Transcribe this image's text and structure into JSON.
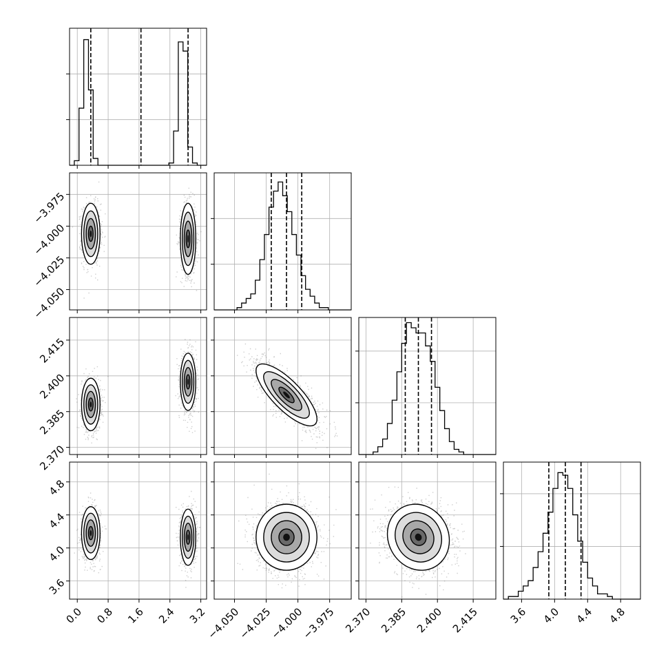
{
  "colors": {
    "ink": "#000000",
    "grid": "#b0b0b0",
    "background": "#ffffff"
  },
  "chart_data": {
    "type": "corner",
    "grid": true,
    "parameters": [
      {
        "range": [
          -0.2,
          3.35
        ],
        "ticks": [
          0.0,
          0.8,
          1.6,
          2.4,
          3.2
        ],
        "tick_labels": [
          "0.0",
          "0.8",
          "1.6",
          "2.4",
          "3.2"
        ],
        "quantiles": [
          0.35,
          1.65,
          2.87
        ]
      },
      {
        "range": [
          -4.066,
          -3.958
        ],
        "ticks": [
          -4.05,
          -4.025,
          -4.0,
          -3.975
        ],
        "tick_labels": [
          "−4.050",
          "−4.025",
          "−4.000",
          "−3.975"
        ],
        "quantiles": [
          -4.021,
          -4.009,
          -3.997
        ]
      },
      {
        "range": [
          2.367,
          2.4245
        ],
        "ticks": [
          2.37,
          2.385,
          2.4,
          2.415
        ],
        "tick_labels": [
          "2.370",
          "2.385",
          "2.400",
          "2.415"
        ],
        "quantiles": [
          2.3865,
          2.392,
          2.3975
        ]
      },
      {
        "range": [
          3.38,
          5.04
        ],
        "ticks": [
          3.6,
          4.0,
          4.4,
          4.8
        ],
        "tick_labels": [
          "3.6",
          "4.0",
          "4.4",
          "4.8"
        ],
        "quantiles": [
          3.93,
          4.13,
          4.32
        ]
      }
    ],
    "histograms": [
      {
        "param": 0,
        "edges": [
          -0.2,
          -0.077,
          0.045,
          0.168,
          0.29,
          0.412,
          0.535,
          0.658,
          0.78,
          0.902,
          1.025,
          1.148,
          1.27,
          1.392,
          1.515,
          1.638,
          1.76,
          1.882,
          2.005,
          2.128,
          2.25,
          2.372,
          2.495,
          2.617,
          2.74,
          2.862,
          2.985,
          3.108,
          3.23,
          3.35
        ],
        "counts": [
          0,
          2,
          25,
          55,
          33,
          3,
          0,
          0,
          0,
          0,
          0,
          0,
          0,
          0,
          0,
          0,
          0,
          0,
          0,
          0,
          0,
          1,
          15,
          54,
          50,
          8,
          1,
          0,
          0
        ],
        "ylim": [
          0,
          60
        ],
        "gridlines": [
          20,
          40
        ]
      },
      {
        "param": 1,
        "edges": [
          -4.066,
          -4.0624,
          -4.0588,
          -4.0552,
          -4.0516,
          -4.048,
          -4.0444,
          -4.0408,
          -4.0372,
          -4.0336,
          -4.03,
          -4.0264,
          -4.0228,
          -4.0192,
          -4.0156,
          -4.012,
          -4.0084,
          -4.0048,
          -4.0012,
          -3.9976,
          -3.994,
          -3.9904,
          -3.9868,
          -3.9832,
          -3.9796,
          -3.976,
          -3.9724,
          -3.9688,
          -3.9652,
          -3.9616,
          -3.958
        ],
        "counts": [
          0,
          0,
          0,
          0,
          0,
          1,
          3,
          5,
          7,
          13,
          22,
          33,
          45,
          52,
          56,
          50,
          43,
          33,
          24,
          15,
          9,
          6,
          3,
          1,
          1,
          0,
          0,
          0,
          0,
          0
        ],
        "ylim": [
          0,
          60
        ],
        "gridlines": [
          20,
          40
        ]
      },
      {
        "param": 2,
        "edges": [
          2.367,
          2.369,
          2.371,
          2.373,
          2.375,
          2.377,
          2.379,
          2.381,
          2.383,
          2.385,
          2.387,
          2.389,
          2.391,
          2.393,
          2.395,
          2.397,
          2.399,
          2.401,
          2.403,
          2.405,
          2.407,
          2.409,
          2.411,
          2.413,
          2.415,
          2.417,
          2.419,
          2.421,
          2.423,
          2.4245
        ],
        "counts": [
          0,
          0,
          0,
          1,
          3,
          6,
          12,
          21,
          32,
          43,
          51,
          49,
          47,
          47,
          42,
          36,
          26,
          17,
          10,
          5,
          2,
          1,
          0,
          0,
          0,
          0,
          0,
          0,
          0
        ],
        "ylim": [
          0,
          53
        ],
        "gridlines": [
          20,
          40
        ]
      },
      {
        "param": 3,
        "edges": [
          3.38,
          3.44,
          3.5,
          3.56,
          3.62,
          3.68,
          3.74,
          3.8,
          3.86,
          3.92,
          3.98,
          4.04,
          4.1,
          4.16,
          4.22,
          4.28,
          4.34,
          4.4,
          4.46,
          4.52,
          4.58,
          4.64,
          4.7,
          4.76,
          4.82,
          4.88,
          4.94,
          5.0,
          5.04
        ],
        "counts": [
          0,
          1,
          1,
          3,
          5,
          7,
          12,
          18,
          25,
          33,
          42,
          48,
          47,
          42,
          32,
          22,
          14,
          8,
          5,
          2,
          2,
          1,
          0,
          0,
          0,
          0,
          0,
          0
        ],
        "ylim": [
          0,
          52
        ],
        "gridlines": [
          20,
          40
        ]
      }
    ],
    "scatter_panels": [
      {
        "x": 0,
        "y": 1,
        "clusters": [
          {
            "center": [
              0.35,
              -4.006
            ],
            "spread": [
              0.12,
              0.012
            ],
            "corr": 0,
            "n": 900
          },
          {
            "center": [
              2.87,
              -4.01
            ],
            "spread": [
              0.1,
              0.014
            ],
            "corr": 0,
            "n": 900
          }
        ]
      },
      {
        "x": 0,
        "y": 2,
        "clusters": [
          {
            "center": [
              0.35,
              2.388
            ],
            "spread": [
              0.12,
              0.0055
            ],
            "corr": 0,
            "n": 900
          },
          {
            "center": [
              2.87,
              2.3975
            ],
            "spread": [
              0.1,
              0.006
            ],
            "corr": 0,
            "n": 900
          }
        ]
      },
      {
        "x": 0,
        "y": 3,
        "clusters": [
          {
            "center": [
              0.35,
              4.18
            ],
            "spread": [
              0.12,
              0.16
            ],
            "corr": 0,
            "n": 900
          },
          {
            "center": [
              2.87,
              4.13
            ],
            "spread": [
              0.1,
              0.17
            ],
            "corr": 0,
            "n": 900
          }
        ]
      },
      {
        "x": 1,
        "y": 2,
        "clusters": [
          {
            "center": [
              -4.009,
              2.392
            ],
            "spread": [
              0.012,
              0.0065
            ],
            "corr": -0.78,
            "n": 1800
          }
        ]
      },
      {
        "x": 1,
        "y": 3,
        "clusters": [
          {
            "center": [
              -4.009,
              4.13
            ],
            "spread": [
              0.012,
              0.2
            ],
            "corr": 0,
            "n": 1800
          }
        ]
      },
      {
        "x": 2,
        "y": 3,
        "clusters": [
          {
            "center": [
              2.392,
              4.13
            ],
            "spread": [
              0.0065,
              0.2
            ],
            "corr": -0.1,
            "n": 1800
          }
        ]
      }
    ]
  }
}
